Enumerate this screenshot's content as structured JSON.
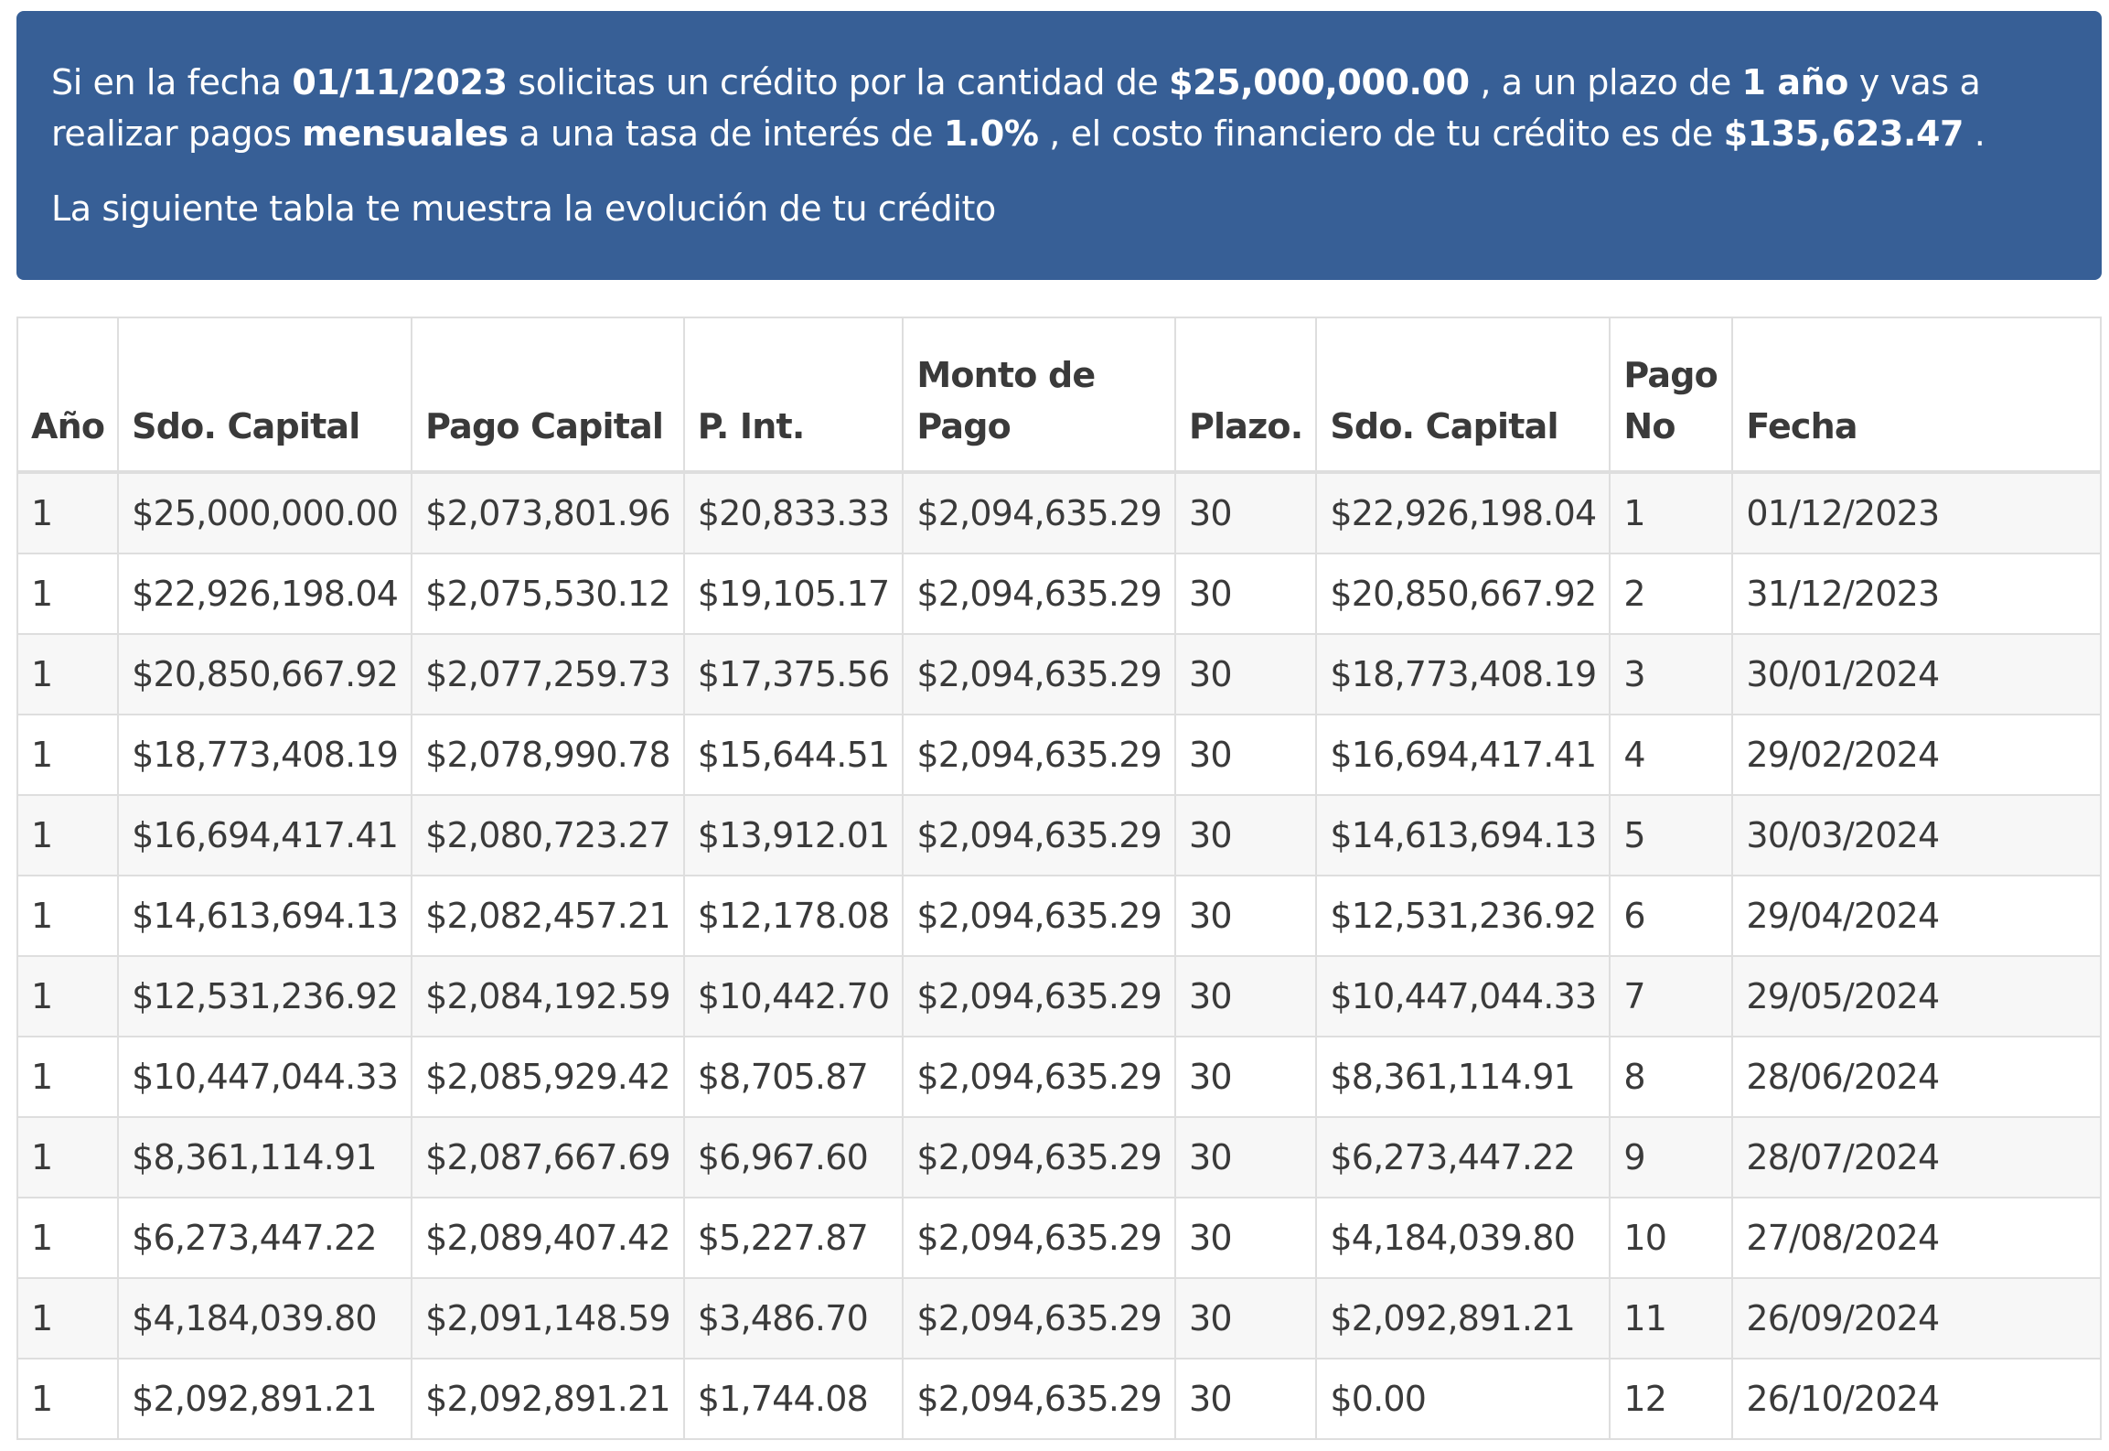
{
  "info": {
    "s1": "Si en la fecha ",
    "fecha": "01/11/2023",
    "s2": " solicitas un crédito por la cantidad de ",
    "monto": "$25,000,000.00",
    "s3": " , a un plazo de ",
    "plazo": "1 año",
    "s4": " y vas a realizar pagos ",
    "frecuencia": "mensuales",
    "s5": " a una tasa de interés de ",
    "tasa": "1.0%",
    "s6": " , el costo financiero de tu crédito es de ",
    "costo": "$135,623.47",
    "s7": " .",
    "subtitle": "La siguiente tabla te muestra la evolución de tu crédito"
  },
  "colors": {
    "banner_bg": "#375f96",
    "stripe": "#f7f7f7",
    "border": "#dedede"
  },
  "table": {
    "headers": [
      "Año",
      "Sdo. Capital",
      "Pago Capital",
      "P. Int.",
      "Monto de Pago",
      "Plazo.",
      "Sdo. Capital",
      "Pago No",
      "Fecha"
    ],
    "rows": [
      [
        "1",
        "$25,000,000.00",
        "$2,073,801.96",
        "$20,833.33",
        "$2,094,635.29",
        "30",
        "$22,926,198.04",
        "1",
        "01/12/2023"
      ],
      [
        "1",
        "$22,926,198.04",
        "$2,075,530.12",
        "$19,105.17",
        "$2,094,635.29",
        "30",
        "$20,850,667.92",
        "2",
        "31/12/2023"
      ],
      [
        "1",
        "$20,850,667.92",
        "$2,077,259.73",
        "$17,375.56",
        "$2,094,635.29",
        "30",
        "$18,773,408.19",
        "3",
        "30/01/2024"
      ],
      [
        "1",
        "$18,773,408.19",
        "$2,078,990.78",
        "$15,644.51",
        "$2,094,635.29",
        "30",
        "$16,694,417.41",
        "4",
        "29/02/2024"
      ],
      [
        "1",
        "$16,694,417.41",
        "$2,080,723.27",
        "$13,912.01",
        "$2,094,635.29",
        "30",
        "$14,613,694.13",
        "5",
        "30/03/2024"
      ],
      [
        "1",
        "$14,613,694.13",
        "$2,082,457.21",
        "$12,178.08",
        "$2,094,635.29",
        "30",
        "$12,531,236.92",
        "6",
        "29/04/2024"
      ],
      [
        "1",
        "$12,531,236.92",
        "$2,084,192.59",
        "$10,442.70",
        "$2,094,635.29",
        "30",
        "$10,447,044.33",
        "7",
        "29/05/2024"
      ],
      [
        "1",
        "$10,447,044.33",
        "$2,085,929.42",
        "$8,705.87",
        "$2,094,635.29",
        "30",
        "$8,361,114.91",
        "8",
        "28/06/2024"
      ],
      [
        "1",
        "$8,361,114.91",
        "$2,087,667.69",
        "$6,967.60",
        "$2,094,635.29",
        "30",
        "$6,273,447.22",
        "9",
        "28/07/2024"
      ],
      [
        "1",
        "$6,273,447.22",
        "$2,089,407.42",
        "$5,227.87",
        "$2,094,635.29",
        "30",
        "$4,184,039.80",
        "10",
        "27/08/2024"
      ],
      [
        "1",
        "$4,184,039.80",
        "$2,091,148.59",
        "$3,486.70",
        "$2,094,635.29",
        "30",
        "$2,092,891.21",
        "11",
        "26/09/2024"
      ],
      [
        "1",
        "$2,092,891.21",
        "$2,092,891.21",
        "$1,744.08",
        "$2,094,635.29",
        "30",
        "$0.00",
        "12",
        "26/10/2024"
      ]
    ]
  }
}
